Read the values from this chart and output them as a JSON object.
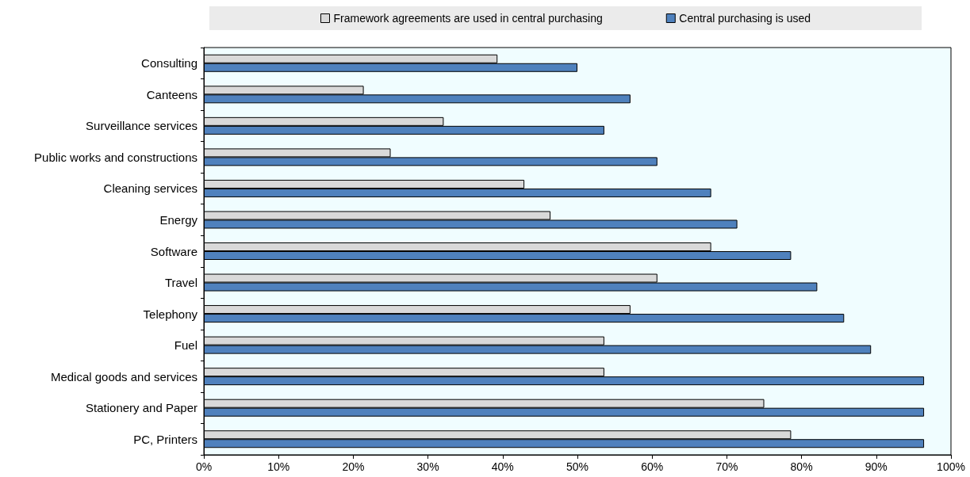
{
  "chart_data": {
    "type": "bar",
    "orientation": "horizontal",
    "categories": [
      "Consulting",
      "Canteens",
      "Surveillance services",
      "Public works and constructions",
      "Cleaning services",
      "Energy",
      "Software",
      "Travel",
      "Telephony",
      "Fuel",
      "Medical goods and services",
      "Stationery and Paper",
      "PC, Printers"
    ],
    "series": [
      {
        "name": "Framework agreements are used in central purchasing",
        "color": "#d9d9d9",
        "values": [
          39.3,
          21.4,
          32.1,
          25.0,
          42.9,
          46.4,
          67.9,
          60.7,
          57.1,
          53.6,
          53.6,
          75.0,
          78.6
        ]
      },
      {
        "name": "Central purchasing is used",
        "color": "#4f81bd",
        "values": [
          50.0,
          57.1,
          53.6,
          60.7,
          67.9,
          71.4,
          78.6,
          82.1,
          85.7,
          89.3,
          96.4,
          96.4,
          96.4
        ]
      }
    ],
    "xlim": [
      0,
      100
    ],
    "xticks": [
      {
        "value": 0,
        "label": "0%"
      },
      {
        "value": 10,
        "label": "10%"
      },
      {
        "value": 20,
        "label": "20%"
      },
      {
        "value": 30,
        "label": "30%"
      },
      {
        "value": 40,
        "label": "40%"
      },
      {
        "value": 50,
        "label": "50%"
      },
      {
        "value": 60,
        "label": "60%"
      },
      {
        "value": 70,
        "label": "70%"
      },
      {
        "value": 80,
        "label": "80%"
      },
      {
        "value": 90,
        "label": "90%"
      },
      {
        "value": 100,
        "label": "100%"
      }
    ],
    "grid": false,
    "legend": "top"
  }
}
